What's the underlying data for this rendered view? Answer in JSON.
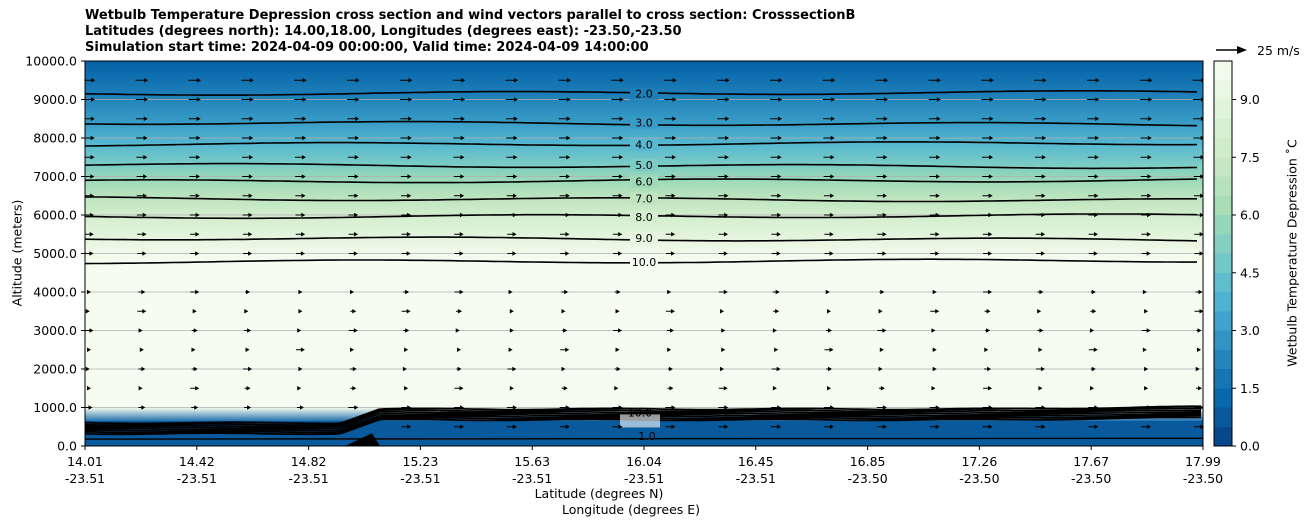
{
  "chart_data": {
    "type": "contourf",
    "title_lines": [
      "Wetbulb Temperature Depression cross section and wind vectors parallel to cross section: CrosssectionB",
      "Latitudes (degrees north): 14.00,18.00, Longitudes (degrees east): -23.50,-23.50",
      "Simulation start time: 2024-04-09 00:00:00, Valid time: 2024-04-09 14:00:00"
    ],
    "ylabel": "Altitude (meters)",
    "xlabel": "Latitude (degrees N)",
    "xlabel2": "Longitude (degrees E)",
    "ylim": [
      0,
      10000
    ],
    "yticks": [
      "0.0",
      "1000.0",
      "2000.0",
      "3000.0",
      "4000.0",
      "5000.0",
      "6000.0",
      "7000.0",
      "8000.0",
      "9000.0",
      "10000.0"
    ],
    "ytick_values": [
      0,
      1000,
      2000,
      3000,
      4000,
      5000,
      6000,
      7000,
      8000,
      9000,
      10000
    ],
    "xticks_lat": [
      "14.01",
      "14.42",
      "14.82",
      "15.23",
      "15.63",
      "16.04",
      "16.45",
      "16.85",
      "17.26",
      "17.67",
      "17.99"
    ],
    "xticks_lon": [
      "-23.51",
      "-23.51",
      "-23.51",
      "-23.51",
      "-23.51",
      "-23.51",
      "-23.51",
      "-23.50",
      "-23.50",
      "-23.50",
      "-23.50"
    ],
    "xtick_positions": [
      0,
      0.1,
      0.2,
      0.3,
      0.4,
      0.5,
      0.6,
      0.7,
      0.8,
      0.9,
      1.0
    ],
    "grid": true,
    "colorbar": {
      "label": "Wetbulb Temperature Depression ˚C",
      "ticks": [
        "0.0",
        "1.5",
        "3.0",
        "4.5",
        "6.0",
        "7.5",
        "9.0"
      ],
      "tick_values": [
        0,
        1.5,
        3,
        4.5,
        6,
        7.5,
        9
      ],
      "vmin": 0,
      "vmax": 10,
      "levels": 20
    },
    "contour_lines": [
      {
        "label": "2.0",
        "altitude": 9150,
        "label_pos": 0.5
      },
      {
        "label": "3.0",
        "altitude": 8400,
        "label_pos": 0.5
      },
      {
        "label": "4.0",
        "altitude": 7830,
        "label_pos": 0.5
      },
      {
        "label": "5.0",
        "altitude": 7300,
        "label_pos": 0.5
      },
      {
        "label": "6.0",
        "altitude": 6870,
        "label_pos": 0.5
      },
      {
        "label": "7.0",
        "altitude": 6430,
        "label_pos": 0.5
      },
      {
        "label": "8.0",
        "altitude": 5950,
        "label_pos": 0.5
      },
      {
        "label": "9.0",
        "altitude": 5400,
        "label_pos": 0.5
      },
      {
        "label": "10.0",
        "altitude": 4780,
        "label_pos": 0.5
      }
    ],
    "surface_labels": [
      "10.0",
      "1.0"
    ],
    "quiver_key": {
      "label": "25 m/s"
    }
  }
}
